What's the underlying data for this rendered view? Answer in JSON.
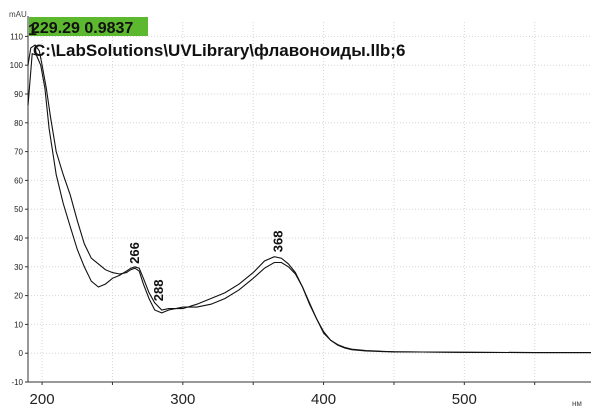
{
  "chart_data": {
    "type": "line",
    "ylabel": "mAU",
    "xunit": "нм",
    "xlim": [
      190,
      590
    ],
    "ylim": [
      -10,
      115
    ],
    "xticks": [
      200,
      300,
      400,
      500
    ],
    "yticks": [
      -10,
      0,
      10,
      20,
      30,
      40,
      50,
      60,
      70,
      80,
      90,
      100,
      110
    ],
    "grid": true,
    "library_label": "C:\\LabSolutions\\UVLibrary\\флавоноиды.llb;6",
    "match_info": {
      "text": "229.29 0.9837",
      "highlight_color": "#5cb82e",
      "overlay_glyph": "1"
    },
    "peak_labels": [
      {
        "text": "266",
        "x": 266,
        "y": 30
      },
      {
        "text": "288",
        "x": 283,
        "y": 17
      },
      {
        "text": "368",
        "x": 368,
        "y": 34
      }
    ],
    "series": [
      {
        "x": [
          190,
          193,
          196,
          199,
          202,
          205,
          210,
          215,
          220,
          225,
          230,
          235,
          240,
          245,
          250,
          255,
          260,
          263,
          266,
          269,
          272,
          276,
          280,
          285,
          290,
          300,
          310,
          320,
          330,
          340,
          350,
          358,
          365,
          370,
          375,
          380,
          385,
          390,
          395,
          400,
          405,
          410,
          415,
          420,
          430,
          440,
          450,
          470,
          500,
          550,
          590
        ],
        "values": [
          86,
          104,
          103.5,
          100,
          92,
          78,
          62,
          52,
          44,
          36,
          30,
          25,
          23,
          24,
          26,
          27,
          28.5,
          29.5,
          30,
          29.5,
          26,
          21,
          17.5,
          15,
          15.5,
          15.5,
          17,
          19,
          21,
          24,
          28,
          32,
          33.5,
          33,
          31,
          28,
          23,
          17,
          12,
          7,
          4.5,
          2.8,
          1.8,
          1.2,
          0.8,
          0.6,
          0.5,
          0.4,
          0.3,
          0.2,
          0.2
        ]
      },
      {
        "x": [
          190,
          192,
          195,
          198,
          200,
          203,
          206,
          210,
          215,
          220,
          225,
          230,
          235,
          240,
          245,
          250,
          255,
          260,
          263,
          266,
          269,
          272,
          276,
          280,
          285,
          290,
          300,
          310,
          320,
          330,
          340,
          350,
          358,
          365,
          370,
          375,
          380,
          385,
          390,
          395,
          400,
          405,
          410,
          415,
          420,
          430,
          440,
          450,
          470,
          500,
          550,
          590
        ],
        "values": [
          100,
          106,
          107,
          105,
          100,
          92,
          82,
          70,
          62,
          55,
          46,
          38,
          33,
          31,
          29,
          28,
          27.5,
          28,
          29,
          29.5,
          28.5,
          24,
          19,
          15,
          14,
          15,
          16,
          16,
          17,
          19,
          22,
          26,
          29.5,
          31.5,
          31.5,
          30,
          27.5,
          23,
          17.5,
          12,
          7.5,
          4.5,
          3,
          2,
          1.4,
          0.9,
          0.7,
          0.5,
          0.4,
          0.3,
          0.2,
          0.2
        ]
      }
    ]
  }
}
